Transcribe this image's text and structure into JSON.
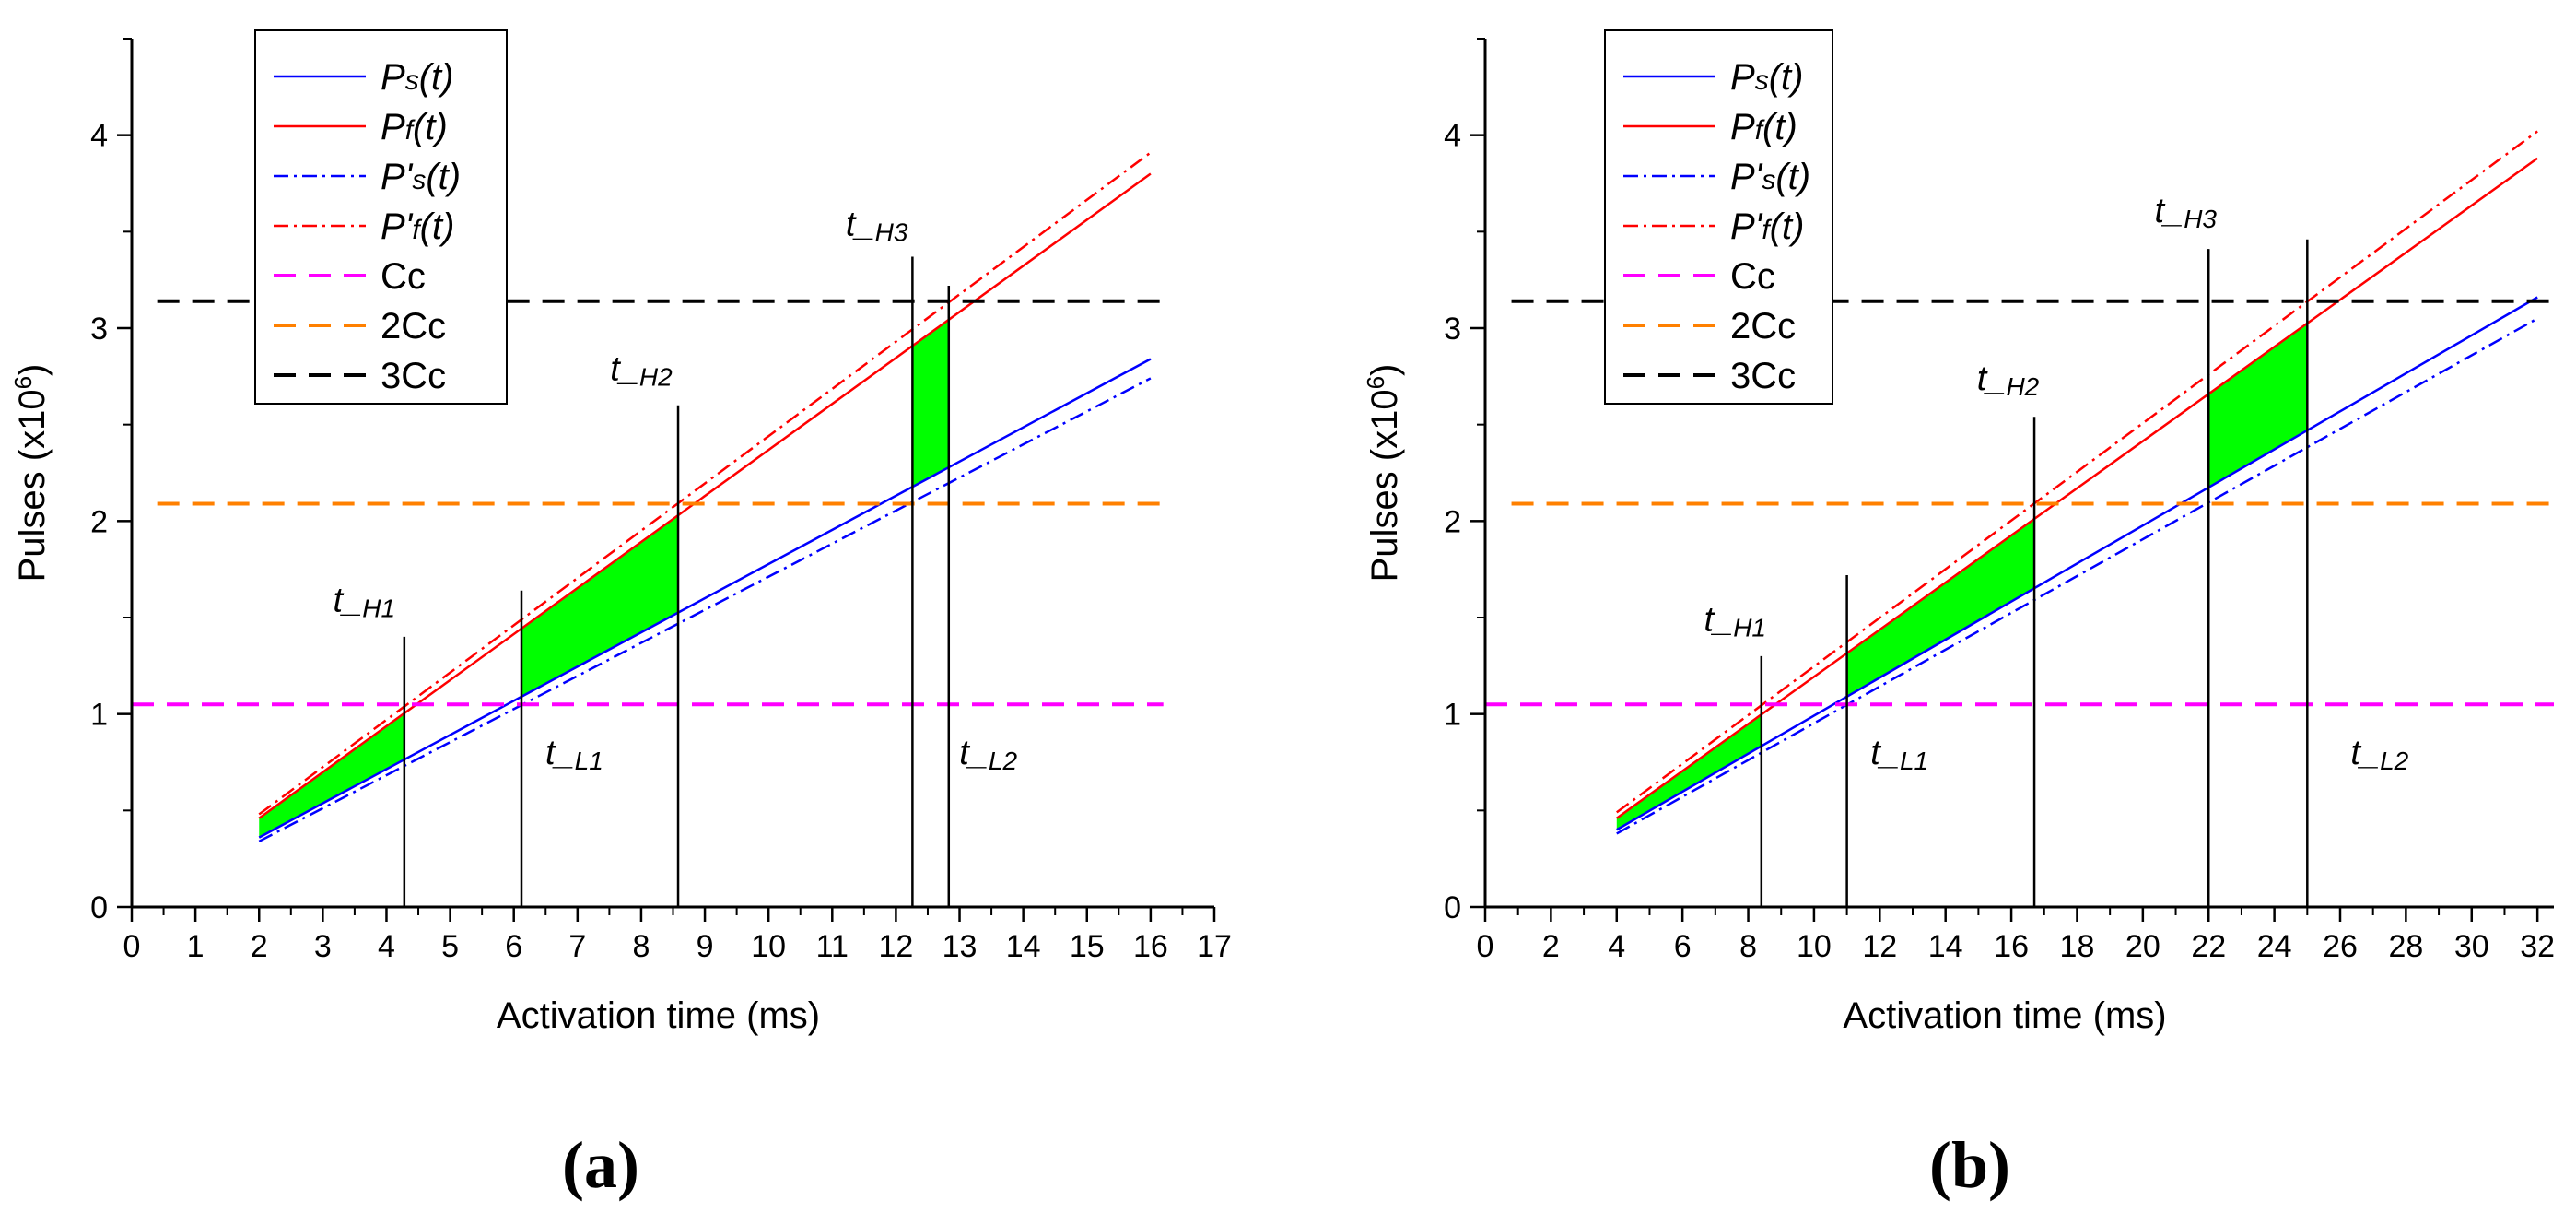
{
  "chart_data": [
    {
      "type": "line",
      "panel_label": "(a)",
      "xlabel": "Activation time (ms)",
      "ylabel": "Pulses (x10",
      "ylabel_sup": "6",
      "ylabel_close": ")",
      "xlim": [
        0,
        17
      ],
      "ylim": [
        0,
        4.5
      ],
      "xticks": [
        0,
        1,
        2,
        3,
        4,
        5,
        6,
        7,
        8,
        9,
        10,
        11,
        12,
        13,
        14,
        15,
        16,
        17
      ],
      "yticks": [
        0,
        1,
        2,
        3,
        4
      ],
      "series": [
        {
          "key": "ps",
          "name": "Ps(t)",
          "label_main": "P",
          "label_sub": "s",
          "label_rest": "(t)",
          "color": "#0000ff",
          "dash": "solid",
          "x": [
            2,
            16
          ],
          "y": [
            0.36,
            2.84
          ]
        },
        {
          "key": "pf",
          "name": "Pf(t)",
          "label_main": "P",
          "label_sub": "f",
          "label_rest": "(t)",
          "color": "#ff0000",
          "dash": "solid",
          "x": [
            2,
            16
          ],
          "y": [
            0.46,
            3.8
          ]
        },
        {
          "key": "pps",
          "name": "P's(t)",
          "label_main": "P'",
          "label_sub": "s",
          "label_rest": "(t)",
          "color": "#0000ff",
          "dash": "dashdot",
          "x": [
            2,
            16
          ],
          "y": [
            0.34,
            2.74
          ]
        },
        {
          "key": "ppf",
          "name": "P'f(t)",
          "label_main": "P'",
          "label_sub": "f",
          "label_rest": "(t)",
          "color": "#ff0000",
          "dash": "dashdot",
          "x": [
            2,
            16
          ],
          "y": [
            0.48,
            3.91
          ]
        },
        {
          "key": "cc",
          "name": "Cc",
          "label_main": "Cc",
          "label_sub": "",
          "label_rest": "",
          "color": "#ff00ff",
          "dash": "dash",
          "x": [
            0,
            16.2
          ],
          "y": [
            1.05,
            1.05
          ]
        },
        {
          "key": "cc2",
          "name": "2Cc",
          "label_main": "2Cc",
          "label_sub": "",
          "label_rest": "",
          "color": "#ff8000",
          "dash": "dash",
          "x": [
            0.4,
            16.2
          ],
          "y": [
            2.09,
            2.09
          ]
        },
        {
          "key": "cc3",
          "name": "3Cc",
          "label_main": "3Cc",
          "label_sub": "",
          "label_rest": "",
          "color": "#000000",
          "dash": "dash",
          "x": [
            0.4,
            16.2
          ],
          "y": [
            3.14,
            3.14
          ]
        }
      ],
      "shaded_regions": [
        {
          "x0": 2,
          "x1": 4.28,
          "fill": "#00ff00"
        },
        {
          "x0": 6.12,
          "x1": 8.58,
          "fill": "#00ff00"
        },
        {
          "x0": 12.26,
          "x1": 12.83,
          "fill": "#00ff00"
        }
      ],
      "markers": [
        {
          "x": 4.28,
          "y_top": 1.4,
          "label": "t_",
          "sub": "H1",
          "label_x": 3.65,
          "label_y": 1.53
        },
        {
          "x": 6.12,
          "y_top": 1.64,
          "label": "t_",
          "sub": "L1",
          "label_x": 6.95,
          "label_y": 0.74
        },
        {
          "x": 8.58,
          "y_top": 2.6,
          "label": "t_",
          "sub": "H2",
          "label_x": 8.0,
          "label_y": 2.73
        },
        {
          "x": 12.26,
          "y_top": 3.37,
          "label": "t_",
          "sub": "H3",
          "label_x": 11.7,
          "label_y": 3.48
        },
        {
          "x": 12.83,
          "y_top": 3.22,
          "label": "t_",
          "sub": "L2",
          "label_x": 13.45,
          "label_y": 0.74
        }
      ]
    },
    {
      "type": "line",
      "panel_label": "(b)",
      "xlabel": "Activation time (ms)",
      "ylabel": "Pulses (x10",
      "ylabel_sup": "6",
      "ylabel_close": ")",
      "xlim": [
        0,
        32.5
      ],
      "ylim": [
        0,
        4.5
      ],
      "xticks": [
        0,
        2,
        4,
        6,
        8,
        10,
        12,
        14,
        16,
        18,
        20,
        22,
        24,
        26,
        28,
        30,
        32
      ],
      "yticks": [
        0,
        1,
        2,
        3,
        4
      ],
      "series": [
        {
          "key": "ps",
          "name": "Ps(t)",
          "label_main": "P",
          "label_sub": "s",
          "label_rest": "(t)",
          "color": "#0000ff",
          "dash": "solid",
          "x": [
            4,
            32
          ],
          "y": [
            0.4,
            3.16
          ]
        },
        {
          "key": "pf",
          "name": "Pf(t)",
          "label_main": "P",
          "label_sub": "f",
          "label_rest": "(t)",
          "color": "#ff0000",
          "dash": "solid",
          "x": [
            4,
            32
          ],
          "y": [
            0.46,
            3.88
          ]
        },
        {
          "key": "pps",
          "name": "P's(t)",
          "label_main": "P'",
          "label_sub": "s",
          "label_rest": "(t)",
          "color": "#0000ff",
          "dash": "dashdot",
          "x": [
            4,
            32
          ],
          "y": [
            0.38,
            3.05
          ]
        },
        {
          "key": "ppf",
          "name": "P'f(t)",
          "label_main": "P'",
          "label_sub": "f",
          "label_rest": "(t)",
          "color": "#ff0000",
          "dash": "dashdot",
          "x": [
            4,
            32
          ],
          "y": [
            0.49,
            4.02
          ]
        },
        {
          "key": "cc",
          "name": "Cc",
          "label_main": "Cc",
          "label_sub": "",
          "label_rest": "",
          "color": "#ff00ff",
          "dash": "dash",
          "x": [
            0,
            32.5
          ],
          "y": [
            1.05,
            1.05
          ]
        },
        {
          "key": "cc2",
          "name": "2Cc",
          "label_main": "2Cc",
          "label_sub": "",
          "label_rest": "",
          "color": "#ff8000",
          "dash": "dash",
          "x": [
            0.8,
            32.5
          ],
          "y": [
            2.09,
            2.09
          ]
        },
        {
          "key": "cc3",
          "name": "3Cc",
          "label_main": "3Cc",
          "label_sub": "",
          "label_rest": "",
          "color": "#000000",
          "dash": "dash",
          "x": [
            0.8,
            32.5
          ],
          "y": [
            3.14,
            3.14
          ]
        }
      ],
      "shaded_regions": [
        {
          "x0": 4,
          "x1": 8.4,
          "fill": "#00ff00"
        },
        {
          "x0": 11.0,
          "x1": 16.7,
          "fill": "#00ff00"
        },
        {
          "x0": 22.0,
          "x1": 25.0,
          "fill": "#00ff00"
        }
      ],
      "markers": [
        {
          "x": 8.4,
          "y_top": 1.3,
          "label": "t_",
          "sub": "H1",
          "label_x": 7.6,
          "label_y": 1.43
        },
        {
          "x": 11.0,
          "y_top": 1.72,
          "label": "t_",
          "sub": "L1",
          "label_x": 12.6,
          "label_y": 0.74
        },
        {
          "x": 16.7,
          "y_top": 2.54,
          "label": "t_",
          "sub": "H2",
          "label_x": 15.9,
          "label_y": 2.68
        },
        {
          "x": 22.0,
          "y_top": 3.41,
          "label": "t_",
          "sub": "H3",
          "label_x": 21.3,
          "label_y": 3.55
        },
        {
          "x": 25.0,
          "y_top": 3.46,
          "label": "t_",
          "sub": "L2",
          "label_x": 27.2,
          "label_y": 0.74
        }
      ]
    }
  ]
}
